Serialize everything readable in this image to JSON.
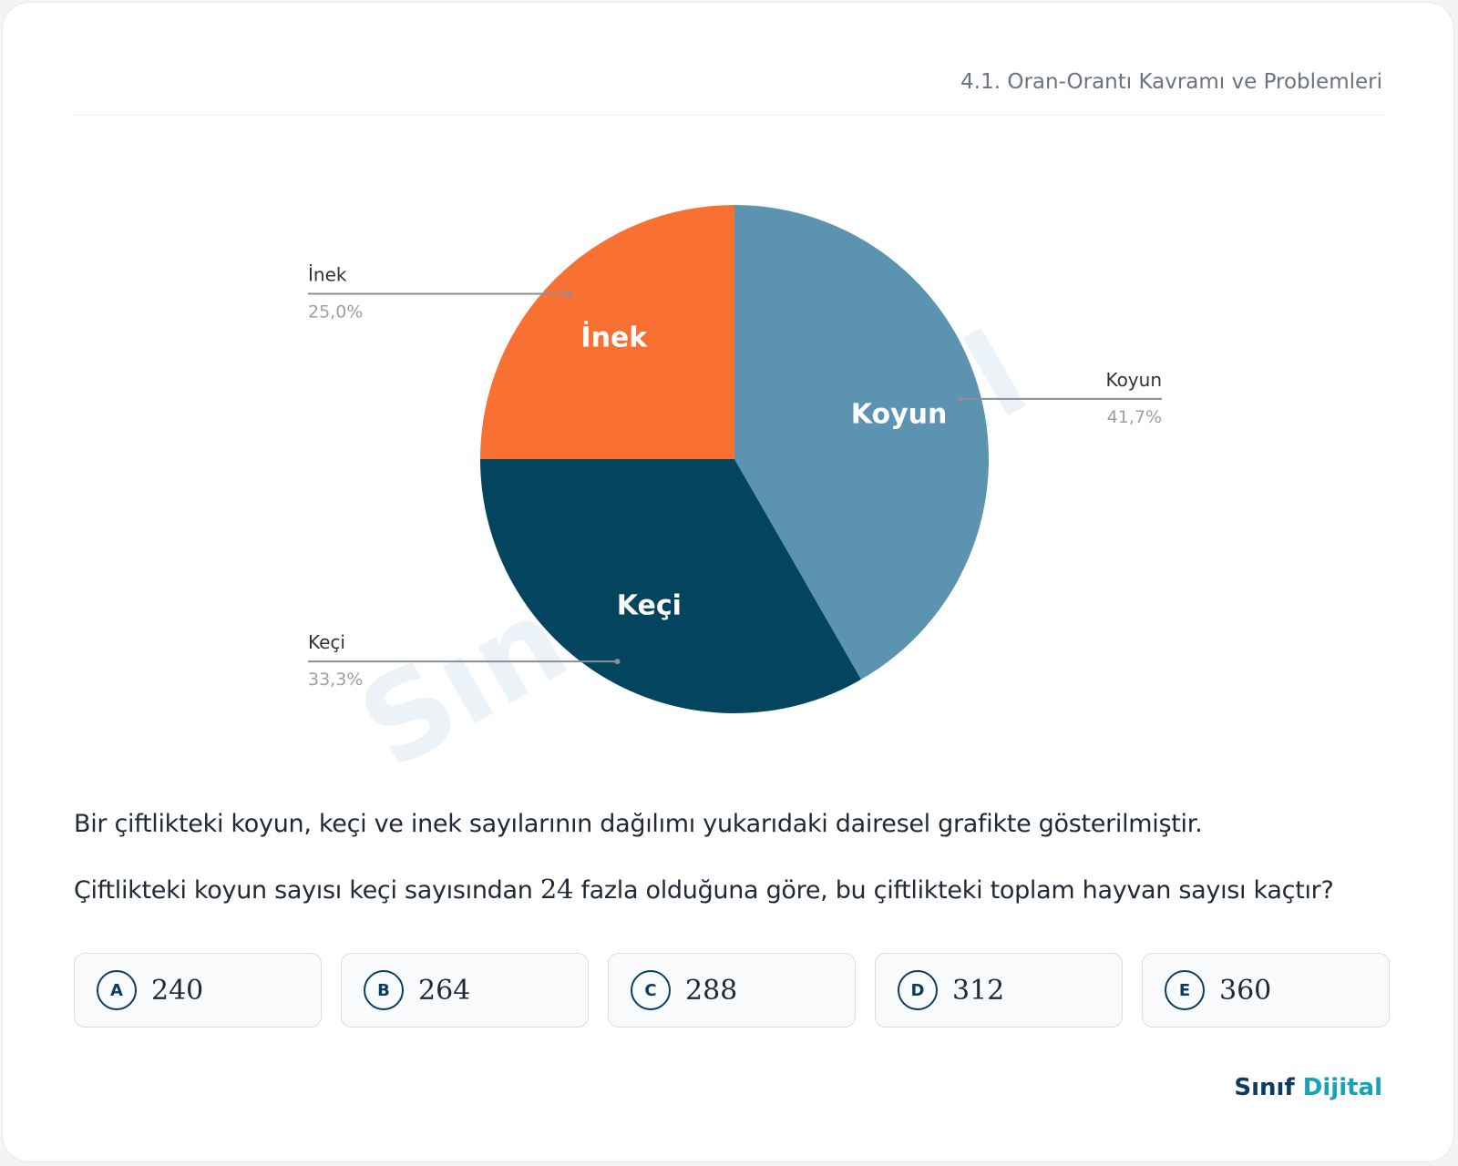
{
  "header": {
    "topic": "4.1. Oran-Orantı Kavramı ve Problemleri"
  },
  "chart_data": {
    "type": "pie",
    "categories": [
      "Koyun",
      "Keçi",
      "İnek"
    ],
    "values": [
      41.7,
      33.3,
      25.0
    ],
    "value_labels": [
      "41,7%",
      "33,3%",
      "25,0%"
    ],
    "colors": [
      "#5b93b0",
      "#03445f",
      "#f97033"
    ]
  },
  "watermark": "Sınıf Dijital",
  "question": {
    "intro": "Bir çiftlikteki koyun, keçi ve inek sayılarının dağılımı yukarıdaki dairesel grafikte gösterilmiştir.",
    "ask_before": "Çiftlikteki koyun sayısı keçi sayısından",
    "ask_number": 24,
    "ask_after": "fazla olduğuna göre, bu çiftlikteki toplam hayvan sayısı kaçtır?"
  },
  "options": [
    {
      "letter": "A",
      "value": 240
    },
    {
      "letter": "B",
      "value": 264
    },
    {
      "letter": "C",
      "value": 288
    },
    {
      "letter": "D",
      "value": 312
    },
    {
      "letter": "E",
      "value": 360
    }
  ],
  "footer": {
    "brand_first": "Sınıf",
    "brand_second": "Dijital"
  }
}
